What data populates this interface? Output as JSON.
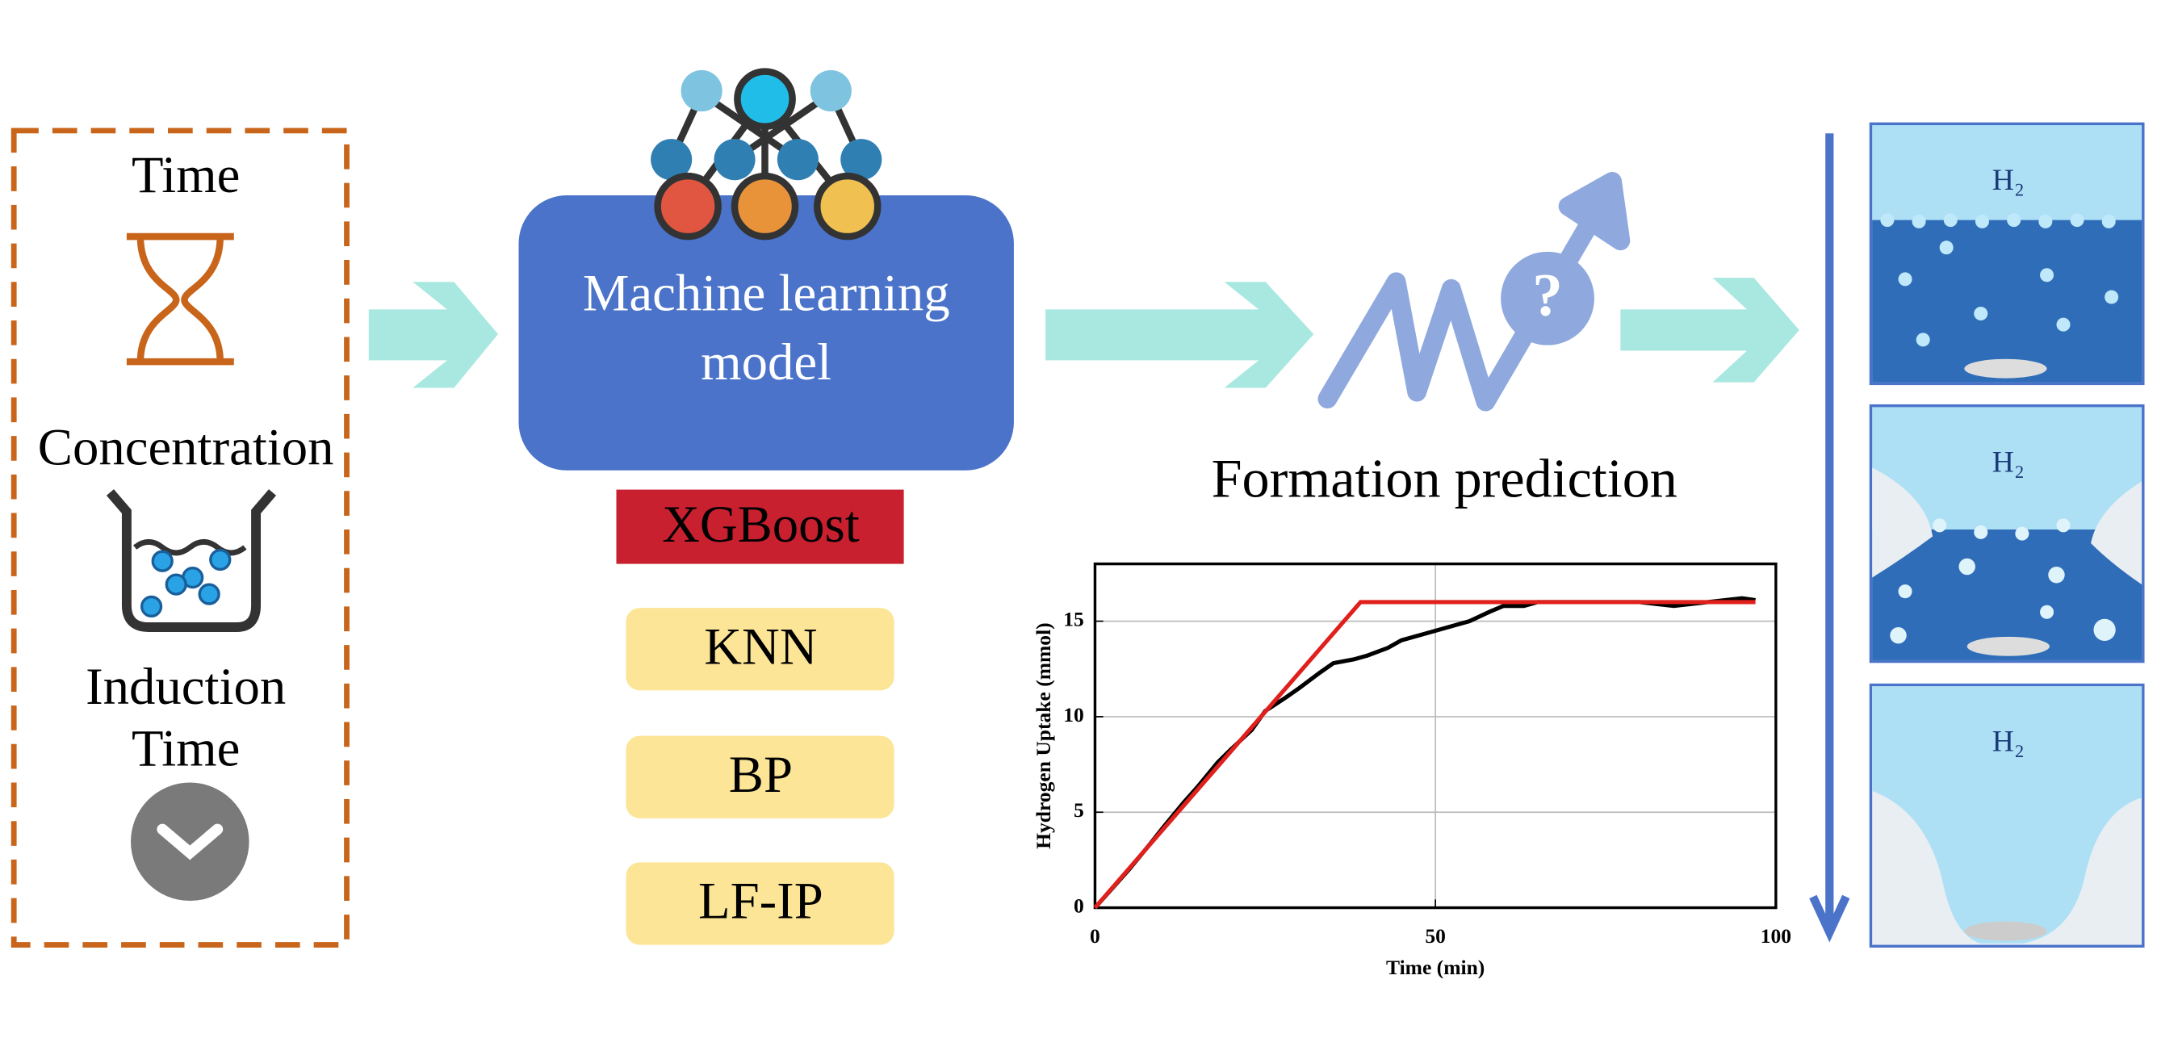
{
  "input_labels": [
    [
      "Time"
    ],
    [
      "Concentration"
    ],
    [
      "Induction",
      "Time"
    ]
  ],
  "model": {
    "title": [
      "Machine learning",
      "model"
    ],
    "algorithms": [
      "XGBoost",
      "KNN",
      "BP",
      "LF-IP"
    ]
  },
  "prediction_title": "Formation prediction",
  "panels": [
    "H₂",
    "H₂",
    "H₂"
  ],
  "chart": {
    "type": "line",
    "xlabel": "Time (min)",
    "ylabel": "Hydrogen Uptake (mmol)",
    "xlim": [
      0,
      100
    ],
    "ylim": [
      0,
      18
    ],
    "xticks": [
      0,
      50,
      100
    ],
    "yticks": [
      0,
      5,
      10,
      15
    ],
    "grid": true,
    "series": [
      {
        "color": "#000000",
        "x": [
          0,
          2,
          5,
          8,
          10,
          13,
          15,
          18,
          20,
          23,
          25,
          28,
          30,
          33,
          35,
          38,
          40,
          43,
          45,
          48,
          50,
          53,
          55,
          58,
          60,
          63,
          65,
          70,
          75,
          80,
          85,
          90,
          95,
          97
        ],
        "values": [
          0,
          0.8,
          2,
          3.3,
          4.2,
          5.5,
          6.3,
          7.6,
          8.3,
          9.3,
          10.3,
          11,
          11.5,
          12.3,
          12.8,
          13,
          13.2,
          13.6,
          14,
          14.3,
          14.5,
          14.8,
          15,
          15.5,
          15.8,
          15.8,
          16,
          16,
          16,
          16,
          15.8,
          16,
          16.2,
          16.1
        ]
      },
      {
        "color": "#e0201c",
        "x": [
          0,
          39,
          97
        ],
        "values": [
          0,
          16,
          16
        ]
      }
    ]
  }
}
